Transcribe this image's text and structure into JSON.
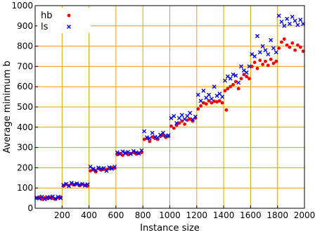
{
  "chart_data": {
    "type": "scatter",
    "xlabel": "Instance size",
    "ylabel": "Average minimum b",
    "xlim": [
      0,
      2000
    ],
    "ylim": [
      0,
      1000
    ],
    "xticks": [
      200,
      400,
      600,
      800,
      1000,
      1200,
      1400,
      1600,
      1800,
      2000
    ],
    "yticks": [
      0,
      100,
      200,
      300,
      400,
      500,
      600,
      700,
      800,
      900,
      1000
    ],
    "grid": true,
    "grid_color": "#e0a400",
    "legend_position": "top-left",
    "series": [
      {
        "name": "hb",
        "marker": "dot",
        "color": "#ff0000",
        "points": [
          [
            10,
            50
          ],
          [
            30,
            55
          ],
          [
            50,
            45
          ],
          [
            70,
            52
          ],
          [
            90,
            48
          ],
          [
            110,
            55
          ],
          [
            130,
            50
          ],
          [
            150,
            45
          ],
          [
            170,
            52
          ],
          [
            190,
            55
          ],
          [
            210,
            110
          ],
          [
            230,
            118
          ],
          [
            250,
            112
          ],
          [
            270,
            120
          ],
          [
            290,
            115
          ],
          [
            310,
            120
          ],
          [
            330,
            112
          ],
          [
            350,
            118
          ],
          [
            370,
            114
          ],
          [
            390,
            110
          ],
          [
            410,
            185
          ],
          [
            430,
            190
          ],
          [
            450,
            180
          ],
          [
            470,
            195
          ],
          [
            490,
            188
          ],
          [
            510,
            192
          ],
          [
            530,
            190
          ],
          [
            550,
            196
          ],
          [
            570,
            200
          ],
          [
            590,
            198
          ],
          [
            610,
            265
          ],
          [
            630,
            270
          ],
          [
            650,
            262
          ],
          [
            670,
            272
          ],
          [
            690,
            265
          ],
          [
            710,
            270
          ],
          [
            730,
            275
          ],
          [
            750,
            268
          ],
          [
            770,
            272
          ],
          [
            790,
            275
          ],
          [
            810,
            340
          ],
          [
            830,
            345
          ],
          [
            850,
            330
          ],
          [
            870,
            352
          ],
          [
            890,
            345
          ],
          [
            910,
            340
          ],
          [
            930,
            355
          ],
          [
            950,
            360
          ],
          [
            970,
            350
          ],
          [
            990,
            355
          ],
          [
            1010,
            405
          ],
          [
            1030,
            395
          ],
          [
            1050,
            410
          ],
          [
            1070,
            420
          ],
          [
            1090,
            430
          ],
          [
            1110,
            415
          ],
          [
            1130,
            435
          ],
          [
            1150,
            440
          ],
          [
            1170,
            430
          ],
          [
            1190,
            445
          ],
          [
            1210,
            490
          ],
          [
            1230,
            505
          ],
          [
            1250,
            520
          ],
          [
            1270,
            515
          ],
          [
            1290,
            530
          ],
          [
            1310,
            520
          ],
          [
            1330,
            528
          ],
          [
            1350,
            525
          ],
          [
            1370,
            530
          ],
          [
            1390,
            520
          ],
          [
            1410,
            580
          ],
          [
            1420,
            485
          ],
          [
            1430,
            590
          ],
          [
            1450,
            600
          ],
          [
            1470,
            610
          ],
          [
            1490,
            625
          ],
          [
            1510,
            590
          ],
          [
            1530,
            640
          ],
          [
            1550,
            660
          ],
          [
            1570,
            650
          ],
          [
            1590,
            640
          ],
          [
            1610,
            700
          ],
          [
            1630,
            720
          ],
          [
            1650,
            690
          ],
          [
            1670,
            730
          ],
          [
            1690,
            710
          ],
          [
            1710,
            725
          ],
          [
            1730,
            705
          ],
          [
            1750,
            735
          ],
          [
            1770,
            715
          ],
          [
            1790,
            725
          ],
          [
            1810,
            790
          ],
          [
            1830,
            820
          ],
          [
            1850,
            835
          ],
          [
            1870,
            805
          ],
          [
            1890,
            795
          ],
          [
            1910,
            815
          ],
          [
            1930,
            780
          ],
          [
            1950,
            805
          ],
          [
            1970,
            795
          ],
          [
            1990,
            775
          ]
        ]
      },
      {
        "name": "ls",
        "marker": "cross",
        "color": "#0000ff",
        "points": [
          [
            10,
            52
          ],
          [
            30,
            48
          ],
          [
            50,
            57
          ],
          [
            70,
            45
          ],
          [
            90,
            55
          ],
          [
            110,
            50
          ],
          [
            130,
            58
          ],
          [
            150,
            48
          ],
          [
            170,
            56
          ],
          [
            190,
            50
          ],
          [
            210,
            115
          ],
          [
            230,
            120
          ],
          [
            250,
            110
          ],
          [
            270,
            125
          ],
          [
            290,
            118
          ],
          [
            310,
            122
          ],
          [
            330,
            116
          ],
          [
            350,
            120
          ],
          [
            370,
            112
          ],
          [
            390,
            118
          ],
          [
            410,
            205
          ],
          [
            430,
            195
          ],
          [
            450,
            188
          ],
          [
            470,
            200
          ],
          [
            490,
            195
          ],
          [
            510,
            198
          ],
          [
            530,
            185
          ],
          [
            550,
            202
          ],
          [
            570,
            195
          ],
          [
            590,
            205
          ],
          [
            610,
            275
          ],
          [
            630,
            268
          ],
          [
            650,
            280
          ],
          [
            670,
            272
          ],
          [
            690,
            278
          ],
          [
            710,
            268
          ],
          [
            730,
            282
          ],
          [
            750,
            275
          ],
          [
            770,
            270
          ],
          [
            790,
            285
          ],
          [
            810,
            380
          ],
          [
            830,
            350
          ],
          [
            850,
            345
          ],
          [
            870,
            372
          ],
          [
            890,
            352
          ],
          [
            910,
            348
          ],
          [
            930,
            362
          ],
          [
            950,
            372
          ],
          [
            970,
            358
          ],
          [
            990,
            360
          ],
          [
            1010,
            445
          ],
          [
            1030,
            455
          ],
          [
            1050,
            420
          ],
          [
            1070,
            445
          ],
          [
            1090,
            460
          ],
          [
            1110,
            440
          ],
          [
            1130,
            455
          ],
          [
            1150,
            470
          ],
          [
            1170,
            438
          ],
          [
            1190,
            452
          ],
          [
            1210,
            560
          ],
          [
            1230,
            530
          ],
          [
            1250,
            580
          ],
          [
            1270,
            545
          ],
          [
            1290,
            560
          ],
          [
            1310,
            540
          ],
          [
            1330,
            600
          ],
          [
            1350,
            555
          ],
          [
            1370,
            565
          ],
          [
            1390,
            550
          ],
          [
            1410,
            630
          ],
          [
            1430,
            650
          ],
          [
            1450,
            640
          ],
          [
            1470,
            660
          ],
          [
            1490,
            655
          ],
          [
            1510,
            620
          ],
          [
            1530,
            700
          ],
          [
            1550,
            680
          ],
          [
            1570,
            670
          ],
          [
            1590,
            700
          ],
          [
            1610,
            760
          ],
          [
            1630,
            750
          ],
          [
            1650,
            850
          ],
          [
            1670,
            770
          ],
          [
            1690,
            800
          ],
          [
            1710,
            780
          ],
          [
            1730,
            760
          ],
          [
            1750,
            830
          ],
          [
            1770,
            790
          ],
          [
            1790,
            770
          ],
          [
            1810,
            950
          ],
          [
            1830,
            920
          ],
          [
            1850,
            900
          ],
          [
            1870,
            935
          ],
          [
            1890,
            910
          ],
          [
            1910,
            945
          ],
          [
            1930,
            925
          ],
          [
            1950,
            905
          ],
          [
            1970,
            930
          ],
          [
            1990,
            910
          ]
        ]
      }
    ]
  }
}
